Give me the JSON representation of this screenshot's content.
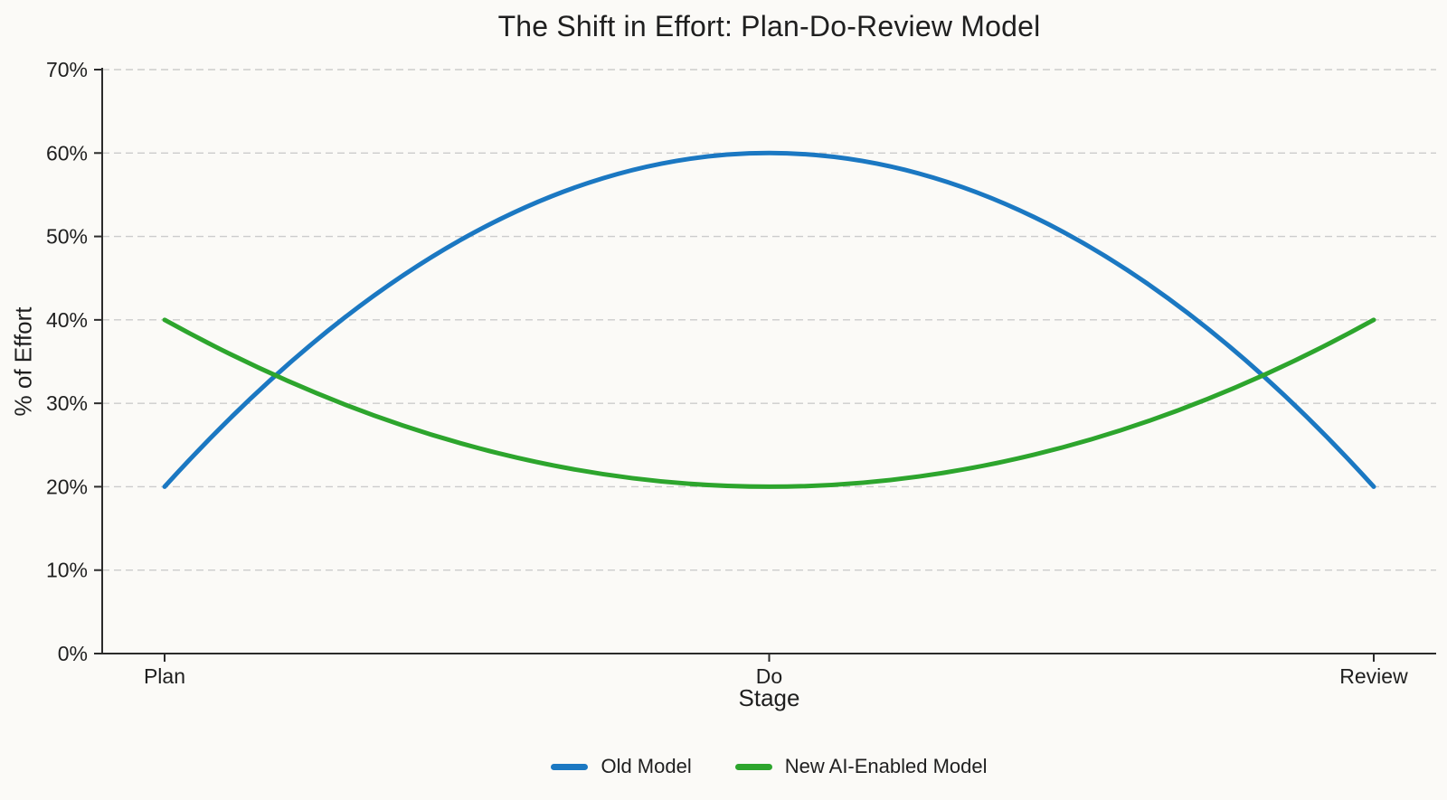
{
  "chart_data": {
    "type": "line",
    "title": "The Shift in Effort: Plan-Do-Review Model",
    "xlabel": "Stage",
    "ylabel": "% of Effort",
    "categories": [
      "Plan",
      "Do",
      "Review"
    ],
    "series": [
      {
        "name": "Old Model",
        "color": "#1b78c2",
        "values": [
          20,
          60,
          20
        ]
      },
      {
        "name": "New AI-Enabled Model",
        "color": "#2da52d",
        "values": [
          40,
          20,
          40
        ]
      }
    ],
    "ylim": [
      0,
      70
    ],
    "yticks": [
      {
        "value": 0,
        "label": "0%"
      },
      {
        "value": 10,
        "label": "10%"
      },
      {
        "value": 20,
        "label": "20%"
      },
      {
        "value": 30,
        "label": "30%"
      },
      {
        "value": 40,
        "label": "40%"
      },
      {
        "value": 50,
        "label": "50%"
      },
      {
        "value": 60,
        "label": "60%"
      },
      {
        "value": 70,
        "label": "70%"
      }
    ],
    "curve": "smooth",
    "grid": "horizontal-dashed",
    "legend_position": "bottom"
  },
  "colors": {
    "background": "#fbfaf7",
    "grid": "#cccccc",
    "axis": "#2b2b2b",
    "text": "#1f1f1f"
  }
}
